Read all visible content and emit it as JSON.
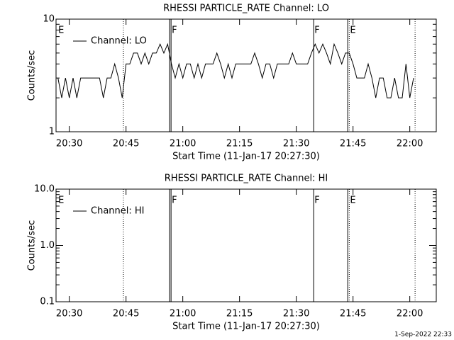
{
  "chart_data": [
    {
      "type": "line",
      "title": "RHESSI PARTICLE_RATE Channel: LO",
      "xlabel": "Start Time (11-Jan-17 20:27:30)",
      "ylabel": "Counts/sec",
      "log_y": true,
      "xlim": [
        1226.5,
        1327
      ],
      "xticks": [
        {
          "value": 1230,
          "label": "20:30"
        },
        {
          "value": 1245,
          "label": "20:45"
        },
        {
          "value": 1260,
          "label": "21:00"
        },
        {
          "value": 1275,
          "label": "21:15"
        },
        {
          "value": 1290,
          "label": "21:30"
        },
        {
          "value": 1305,
          "label": "21:45"
        },
        {
          "value": 1320,
          "label": "22:00"
        }
      ],
      "ylim": [
        1,
        10
      ],
      "yticks": [
        1,
        10
      ],
      "x": [
        1227,
        1228,
        1229,
        1230,
        1231,
        1232,
        1233,
        1234,
        1235,
        1236,
        1237,
        1238,
        1239,
        1240,
        1241,
        1242,
        1243,
        1244,
        1245,
        1246,
        1247,
        1248,
        1249,
        1250,
        1251,
        1252,
        1253,
        1254,
        1255,
        1256,
        1257,
        1258,
        1259,
        1260,
        1261,
        1262,
        1263,
        1264,
        1265,
        1266,
        1267,
        1268,
        1269,
        1270,
        1271,
        1272,
        1273,
        1274,
        1275,
        1276,
        1277,
        1278,
        1279,
        1280,
        1281,
        1282,
        1283,
        1284,
        1285,
        1286,
        1287,
        1288,
        1289,
        1290,
        1291,
        1292,
        1293,
        1294,
        1295,
        1296,
        1297,
        1298,
        1299,
        1300,
        1301,
        1302,
        1303,
        1304,
        1305,
        1306,
        1307,
        1308,
        1309,
        1310,
        1311,
        1312,
        1313,
        1314,
        1315,
        1316,
        1317,
        1318,
        1319,
        1320,
        1321
      ],
      "series": [
        {
          "name": "Channel: LO",
          "color": "#000000",
          "values": [
            3,
            2,
            3,
            2,
            3,
            2,
            3,
            3,
            3,
            3,
            3,
            3,
            2,
            3,
            3,
            4,
            3,
            2,
            4,
            4,
            5,
            5,
            4,
            5,
            4,
            5,
            5,
            6,
            5,
            6,
            4,
            3,
            4,
            3,
            4,
            4,
            3,
            4,
            3,
            4,
            4,
            4,
            5,
            4,
            3,
            4,
            3,
            4,
            4,
            4,
            4,
            4,
            5,
            4,
            3,
            4,
            4,
            3,
            4,
            4,
            4,
            4,
            5,
            4,
            4,
            4,
            4,
            5,
            6,
            5,
            6,
            5,
            4,
            6,
            5,
            4,
            5,
            5,
            4,
            3,
            3,
            3,
            4,
            3,
            2,
            3,
            3,
            2,
            2,
            3,
            2,
            2,
            4,
            2,
            3
          ]
        }
      ],
      "vlines": [
        {
          "x": 1244.3,
          "style": "dotted"
        },
        {
          "x": 1256.5,
          "style": "solid"
        },
        {
          "x": 1256.9,
          "style": "solid"
        },
        {
          "x": 1294.6,
          "style": "solid"
        },
        {
          "x": 1303.6,
          "style": "solid"
        },
        {
          "x": 1304.0,
          "style": "dotted"
        },
        {
          "x": 1321.4,
          "style": "dotted"
        }
      ],
      "flags": [
        {
          "x": 1226.9,
          "text": "E"
        },
        {
          "x": 1256.9,
          "text": "F"
        },
        {
          "x": 1294.6,
          "text": "F"
        },
        {
          "x": 1304.0,
          "text": "E"
        }
      ]
    },
    {
      "type": "line",
      "title": "RHESSI PARTICLE_RATE Channel: HI",
      "xlabel": "Start Time (11-Jan-17 20:27:30)",
      "ylabel": "Counts/sec",
      "log_y": true,
      "xlim": [
        1226.5,
        1327
      ],
      "xticks": [
        {
          "value": 1230,
          "label": "20:30"
        },
        {
          "value": 1245,
          "label": "20:45"
        },
        {
          "value": 1260,
          "label": "21:00"
        },
        {
          "value": 1275,
          "label": "21:15"
        },
        {
          "value": 1290,
          "label": "21:30"
        },
        {
          "value": 1305,
          "label": "21:45"
        },
        {
          "value": 1320,
          "label": "22:00"
        }
      ],
      "ylim": [
        0.1,
        10
      ],
      "yticks": [
        0.1,
        {
          "value": 1,
          "label": "1.0"
        },
        {
          "value": 10,
          "label": "10.0"
        }
      ],
      "x": [],
      "series": [
        {
          "name": "Channel: HI",
          "color": "#000000",
          "values": []
        }
      ],
      "vlines": [
        {
          "x": 1244.3,
          "style": "dotted"
        },
        {
          "x": 1256.5,
          "style": "solid"
        },
        {
          "x": 1256.9,
          "style": "solid"
        },
        {
          "x": 1294.6,
          "style": "solid"
        },
        {
          "x": 1303.6,
          "style": "solid"
        },
        {
          "x": 1304.0,
          "style": "dotted"
        },
        {
          "x": 1321.4,
          "style": "dotted"
        }
      ],
      "flags": [
        {
          "x": 1226.9,
          "text": "E"
        },
        {
          "x": 1256.9,
          "text": "F"
        },
        {
          "x": 1294.6,
          "text": "F"
        },
        {
          "x": 1304.0,
          "text": "E"
        }
      ]
    }
  ],
  "footer": "1-Sep-2022 22:33"
}
